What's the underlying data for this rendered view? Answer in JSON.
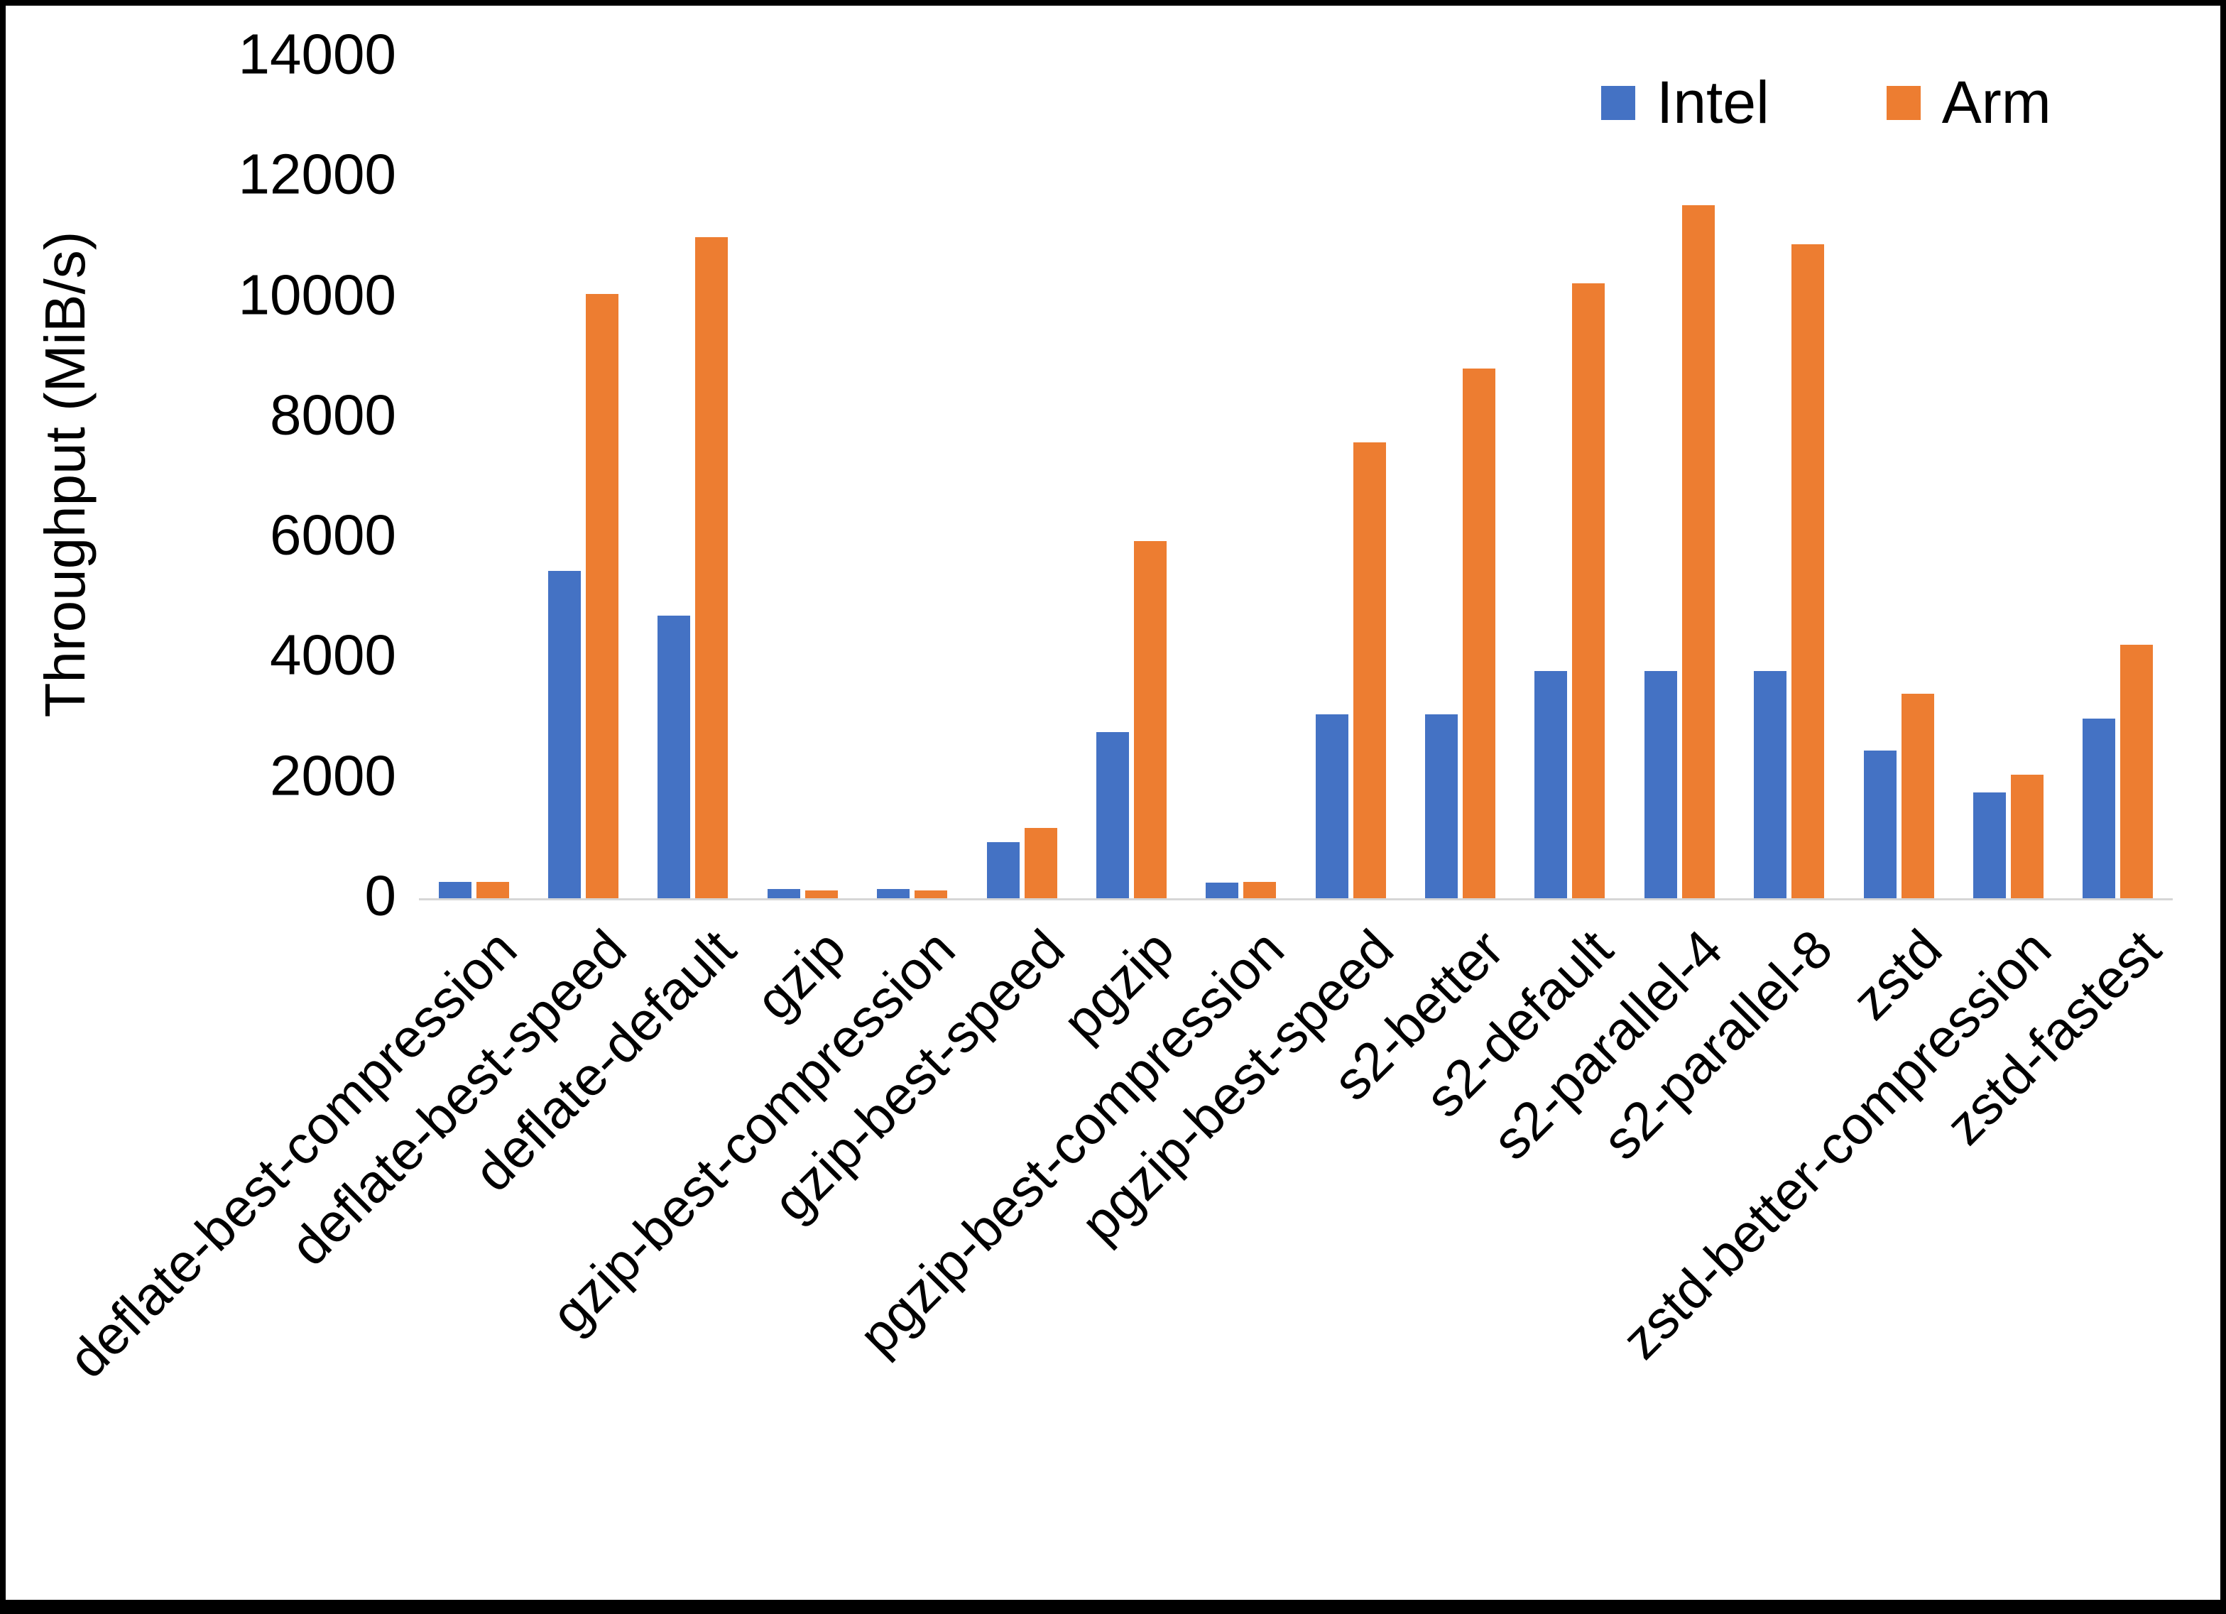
{
  "chart_data": {
    "type": "bar",
    "title": "",
    "xlabel": "",
    "ylabel": "Throughput (MiB/s)",
    "ylim": [
      0,
      14000
    ],
    "ytick_step": 2000,
    "y_tick_labels": [
      "0",
      "2000",
      "4000",
      "6000",
      "8000",
      "10000",
      "12000",
      "14000"
    ],
    "grid": false,
    "legend_position": "top-right",
    "categories": [
      "deflate-best-compression",
      "deflate-best-speed",
      "deflate-default",
      "gzip",
      "gzip-best-compression",
      "gzip-best-speed",
      "pgzip",
      "pgzip-best-compression",
      "pgzip-best-speed",
      "s2-better",
      "s2-default",
      "s2-parallel-4",
      "s2-parallel-8",
      "zstd",
      "zstd-better-compression",
      "zstd-fastest"
    ],
    "series": [
      {
        "name": "Intel",
        "color": "#4472C4",
        "values": [
          270,
          5450,
          4700,
          150,
          150,
          930,
          2760,
          260,
          3060,
          3060,
          3780,
          3780,
          3780,
          2460,
          1760,
          2990
        ]
      },
      {
        "name": "Arm",
        "color": "#ED7D31",
        "values": [
          270,
          10050,
          11000,
          130,
          130,
          1170,
          5940,
          270,
          7580,
          8810,
          10230,
          11530,
          10880,
          3400,
          2060,
          4220
        ]
      }
    ]
  }
}
